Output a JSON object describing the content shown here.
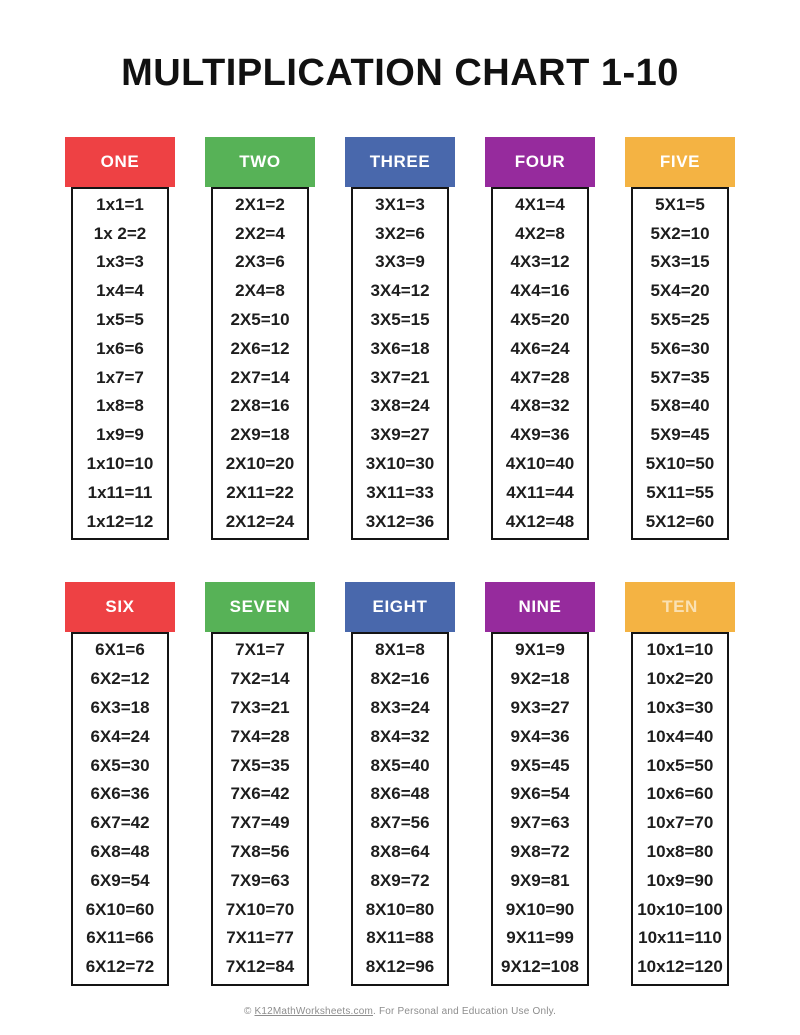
{
  "title": "MULTIPLICATION CHART 1-10",
  "colors": {
    "red": "#ee4144",
    "green": "#57b257",
    "blue": "#4968ac",
    "purple": "#962b9d",
    "orange": "#f4b343",
    "header_text": "#ffffff",
    "ten_header_text": "#fae1b3",
    "fact_text": "#1d1d1d",
    "footer_text": "#8e8e8e"
  },
  "columns": [
    {
      "label": "ONE",
      "color": "#ee4144",
      "label_color": "#ffffff",
      "facts": [
        "1x1=1",
        "1x 2=2",
        "1x3=3",
        "1x4=4",
        "1x5=5",
        "1x6=6",
        "1x7=7",
        "1x8=8",
        "1x9=9",
        "1x10=10",
        "1x11=11",
        "1x12=12"
      ]
    },
    {
      "label": "TWO",
      "color": "#57b257",
      "label_color": "#ffffff",
      "facts": [
        "2X1=2",
        "2X2=4",
        "2X3=6",
        "2X4=8",
        "2X5=10",
        "2X6=12",
        "2X7=14",
        "2X8=16",
        "2X9=18",
        "2X10=20",
        "2X11=22",
        "2X12=24"
      ]
    },
    {
      "label": "THREE",
      "color": "#4968ac",
      "label_color": "#ffffff",
      "facts": [
        "3X1=3",
        "3X2=6",
        "3X3=9",
        "3X4=12",
        "3X5=15",
        "3X6=18",
        "3X7=21",
        "3X8=24",
        "3X9=27",
        "3X10=30",
        "3X11=33",
        "3X12=36"
      ]
    },
    {
      "label": "FOUR",
      "color": "#962b9d",
      "label_color": "#ffffff",
      "facts": [
        "4X1=4",
        "4X2=8",
        "4X3=12",
        "4X4=16",
        "4X5=20",
        "4X6=24",
        "4X7=28",
        "4X8=32",
        "4X9=36",
        "4X10=40",
        "4X11=44",
        "4X12=48"
      ]
    },
    {
      "label": "FIVE",
      "color": "#f4b343",
      "label_color": "#ffffff",
      "facts": [
        "5X1=5",
        "5X2=10",
        "5X3=15",
        "5X4=20",
        "5X5=25",
        "5X6=30",
        "5X7=35",
        "5X8=40",
        "5X9=45",
        "5X10=50",
        "5X11=55",
        "5X12=60"
      ]
    },
    {
      "label": "SIX",
      "color": "#ee4144",
      "label_color": "#ffffff",
      "facts": [
        "6X1=6",
        "6X2=12",
        "6X3=18",
        "6X4=24",
        "6X5=30",
        "6X6=36",
        "6X7=42",
        "6X8=48",
        "6X9=54",
        "6X10=60",
        "6X11=66",
        "6X12=72"
      ]
    },
    {
      "label": "SEVEN",
      "color": "#57b257",
      "label_color": "#ffffff",
      "facts": [
        "7X1=7",
        "7X2=14",
        "7X3=21",
        "7X4=28",
        "7X5=35",
        "7X6=42",
        "7X7=49",
        "7X8=56",
        "7X9=63",
        "7X10=70",
        "7X11=77",
        "7X12=84"
      ]
    },
    {
      "label": "EIGHT",
      "color": "#4968ac",
      "label_color": "#ffffff",
      "facts": [
        "8X1=8",
        "8X2=16",
        "8X3=24",
        "8X4=32",
        "8X5=40",
        "8X6=48",
        "8X7=56",
        "8X8=64",
        "8X9=72",
        "8X10=80",
        "8X11=88",
        "8X12=96"
      ]
    },
    {
      "label": "NINE",
      "color": "#962b9d",
      "label_color": "#ffffff",
      "facts": [
        "9X1=9",
        "9X2=18",
        "9X3=27",
        "9X4=36",
        "9X5=45",
        "9X6=54",
        "9X7=63",
        "9X8=72",
        "9X9=81",
        "9X10=90",
        "9X11=99",
        "9X12=108"
      ]
    },
    {
      "label": "TEN",
      "color": "#f4b343",
      "label_color": "#fae1b3",
      "facts": [
        "10x1=10",
        "10x2=20",
        "10x3=30",
        "10x4=40",
        "10x5=50",
        "10x6=60",
        "10x7=70",
        "10x8=80",
        "10x9=90",
        "10x10=100",
        "10x11=110",
        "10x12=120"
      ]
    }
  ],
  "footer": {
    "prefix": "© ",
    "link": "K12MathWorksheets.com",
    "suffix": ". For Personal and Education Use Only."
  }
}
